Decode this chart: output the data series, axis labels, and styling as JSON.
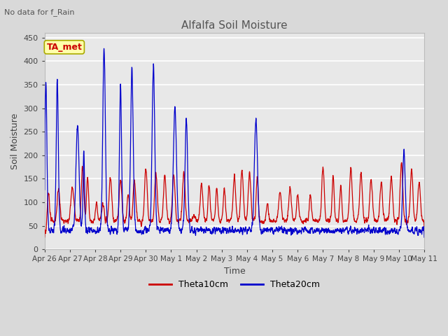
{
  "title": "Alfalfa Soil Moisture",
  "ylabel": "Soil Moisture",
  "xlabel": "Time",
  "top_left_text": "No data for f_Rain",
  "annotation_text": "TA_met",
  "ylim": [
    0,
    460
  ],
  "background_color": "#d9d9d9",
  "plot_bg_color": "#e8e8e8",
  "grid_color": "#ffffff",
  "line1_color": "#cc0000",
  "line2_color": "#0000cc",
  "legend_labels": [
    "Theta10cm",
    "Theta20cm"
  ],
  "xtick_labels": [
    "Apr 26",
    "Apr 27",
    "Apr 28",
    "Apr 29",
    "Apr 30",
    "May 1",
    "May 2",
    "May 3",
    "May 4",
    "May 5",
    "May 6",
    "May 7",
    "May 8",
    "May 9",
    "May 10",
    "May 11"
  ],
  "ytick_values": [
    0,
    50,
    100,
    150,
    200,
    250,
    300,
    350,
    400,
    450
  ],
  "title_color": "#555555",
  "label_color": "#444444"
}
